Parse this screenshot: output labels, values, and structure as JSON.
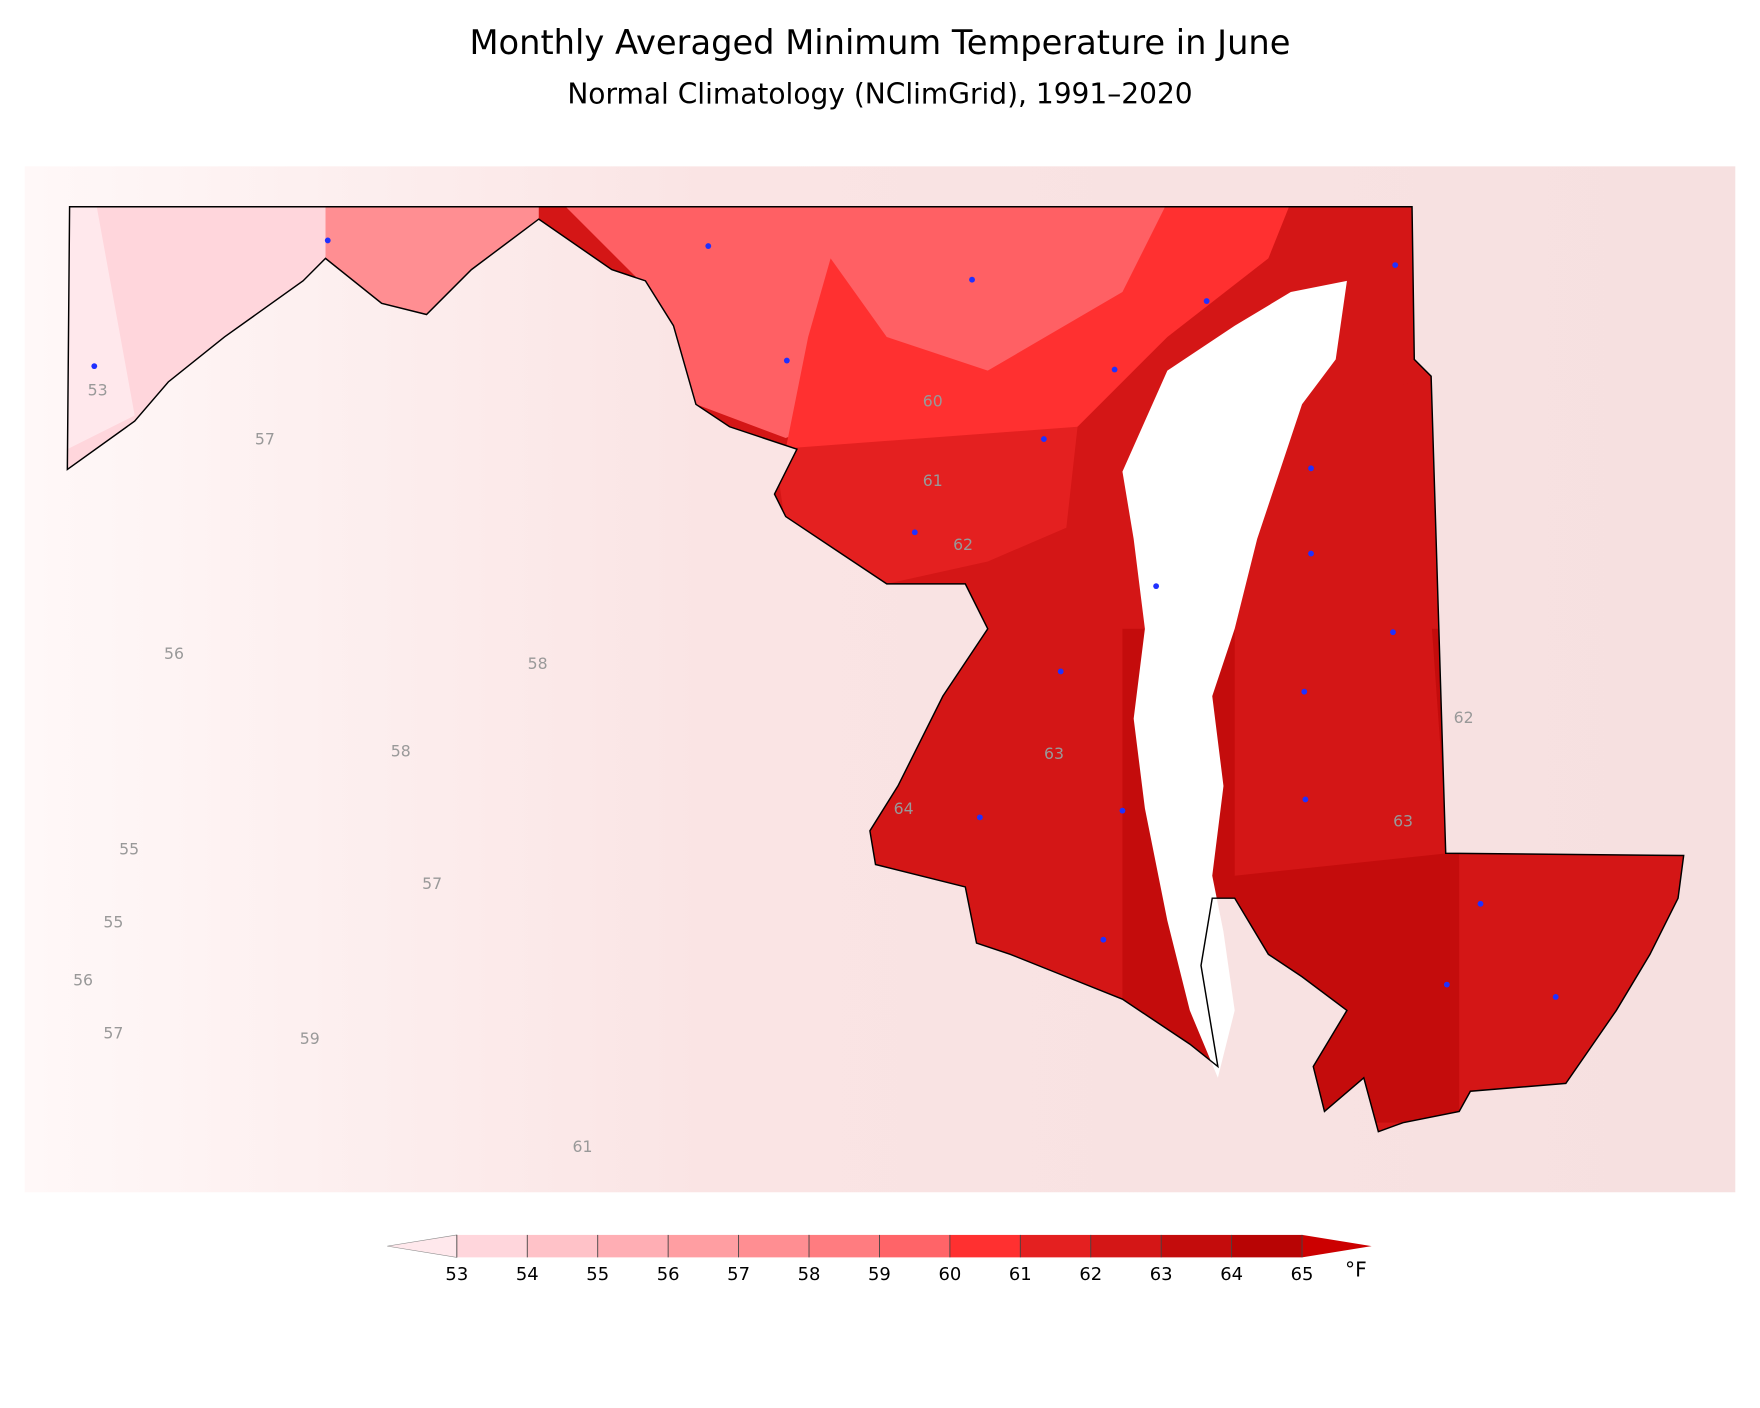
{
  "chart_data": {
    "type": "map",
    "title": "Monthly Averaged Minimum Temperature in June",
    "subtitle": "Normal Climatology (NClimGrid), 1991–2020",
    "colorbar": {
      "ticks": [
        53,
        54,
        55,
        56,
        57,
        58,
        59,
        60,
        61,
        62,
        63,
        64,
        65
      ],
      "colors": [
        "#ffe8ec",
        "#ffd6dc",
        "#ffc2c8",
        "#ffaeb4",
        "#ff9ea2",
        "#ff8e92",
        "#ff7c80",
        "#ff6468",
        "#ff3030",
        "#e42020",
        "#d41616",
        "#c40c0c",
        "#b80404",
        "#cc0000"
      ],
      "unit": "°F"
    },
    "contour_labels": [
      53,
      57,
      56,
      58,
      58,
      55,
      57,
      55,
      56,
      57,
      59,
      61,
      60,
      61,
      62,
      63,
      64,
      62,
      63
    ]
  }
}
